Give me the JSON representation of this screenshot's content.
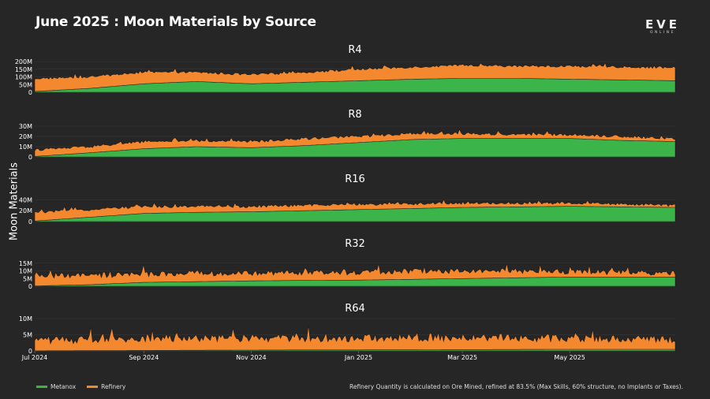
{
  "header": {
    "title": "June 2025 : Moon Materials by Source",
    "logo_main": "EVE",
    "logo_sub": "ONLINE"
  },
  "ylabel": "Moon Materials",
  "legend": [
    {
      "name": "Metanox",
      "color": "#3bb54a"
    },
    {
      "name": "Refinery",
      "color": "#f4882f"
    }
  ],
  "footnote": "Refinery Quantity is calculated on Ore Mined, refined at 83.5% (Max Skills, 60% structure, no Implants or Taxes).",
  "colors": {
    "background": "#262626",
    "metanox": "#3bb54a",
    "refinery": "#f4882f",
    "outline": "#1a1a1a",
    "grid": "#3a3a3a"
  },
  "chart_data": {
    "type": "area",
    "stacked": true,
    "x_range": [
      "2024-07-01",
      "2025-06-30"
    ],
    "x_ticks": [
      "Jul 2024",
      "Sep 2024",
      "Nov 2024",
      "Jan 2025",
      "Mar 2025",
      "May 2025"
    ],
    "x_tick_dates": [
      "2024-07-01",
      "2024-09-01",
      "2024-11-01",
      "2025-01-01",
      "2025-03-01",
      "2025-05-01"
    ],
    "series_names": [
      "Metanox",
      "Refinery"
    ],
    "panels": [
      {
        "title": "R4",
        "ylim": [
          0,
          200000000
        ],
        "y_ticks": [
          0,
          50000000,
          100000000,
          150000000,
          200000000
        ],
        "y_tick_labels": [
          "0",
          "50M",
          "100M",
          "150M",
          "200M"
        ],
        "dates": [
          "2024-07-01",
          "2024-08-01",
          "2024-09-01",
          "2024-10-01",
          "2024-11-01",
          "2024-12-01",
          "2025-01-01",
          "2025-02-01",
          "2025-03-01",
          "2025-04-01",
          "2025-05-01",
          "2025-06-01",
          "2025-06-30"
        ],
        "metanox": [
          5000000,
          25000000,
          55000000,
          70000000,
          55000000,
          65000000,
          75000000,
          85000000,
          90000000,
          90000000,
          85000000,
          80000000,
          75000000
        ],
        "total": [
          90000000,
          100000000,
          130000000,
          130000000,
          115000000,
          130000000,
          150000000,
          165000000,
          175000000,
          170000000,
          170000000,
          165000000,
          160000000
        ],
        "spike_amp": 15000000
      },
      {
        "title": "R8",
        "ylim": [
          0,
          30000000
        ],
        "y_ticks": [
          0,
          10000000,
          20000000,
          30000000
        ],
        "y_tick_labels": [
          "0",
          "10M",
          "20M",
          "30M"
        ],
        "dates": [
          "2024-07-01",
          "2024-08-01",
          "2024-09-01",
          "2024-10-01",
          "2024-11-01",
          "2024-12-01",
          "2025-01-01",
          "2025-02-01",
          "2025-03-01",
          "2025-04-01",
          "2025-05-01",
          "2025-06-01",
          "2025-06-30"
        ],
        "metanox": [
          500000,
          4000000,
          8000000,
          10000000,
          9000000,
          11000000,
          14000000,
          17000000,
          18000000,
          18000000,
          18000000,
          16000000,
          15000000
        ],
        "total": [
          7000000,
          10000000,
          15000000,
          16000000,
          15000000,
          18000000,
          20000000,
          23000000,
          23000000,
          22000000,
          22000000,
          20000000,
          18000000
        ],
        "spike_amp": 2500000
      },
      {
        "title": "R16",
        "ylim": [
          0,
          55000000
        ],
        "y_ticks": [
          0,
          20000000,
          40000000
        ],
        "y_tick_labels": [
          "0",
          "20M",
          "40M"
        ],
        "dates": [
          "2024-07-01",
          "2024-08-01",
          "2024-09-01",
          "2024-10-01",
          "2024-11-01",
          "2024-12-01",
          "2025-01-01",
          "2025-02-01",
          "2025-03-01",
          "2025-04-01",
          "2025-05-01",
          "2025-06-01",
          "2025-06-30"
        ],
        "metanox": [
          1000000,
          8000000,
          15000000,
          17000000,
          18000000,
          20000000,
          22000000,
          24000000,
          26000000,
          27000000,
          28000000,
          27000000,
          26000000
        ],
        "total": [
          17000000,
          22000000,
          28000000,
          28000000,
          28000000,
          30000000,
          32000000,
          33000000,
          34000000,
          34000000,
          34000000,
          32000000,
          30000000
        ],
        "spike_amp": 5000000
      },
      {
        "title": "R32",
        "ylim": [
          0,
          19000000
        ],
        "y_ticks": [
          0,
          5000000,
          10000000,
          15000000
        ],
        "y_tick_labels": [
          "0",
          "5M",
          "10M",
          "15M"
        ],
        "dates": [
          "2024-07-01",
          "2024-08-01",
          "2024-09-01",
          "2024-10-01",
          "2024-11-01",
          "2024-12-01",
          "2025-01-01",
          "2025-02-01",
          "2025-03-01",
          "2025-04-01",
          "2025-05-01",
          "2025-06-01",
          "2025-06-30"
        ],
        "metanox": [
          200000,
          1000000,
          2500000,
          3000000,
          3500000,
          3800000,
          4000000,
          4500000,
          5000000,
          5500000,
          6000000,
          6000000,
          6000000
        ],
        "total": [
          7000000,
          7000000,
          8000000,
          8500000,
          8500000,
          9000000,
          9000000,
          10000000,
          10000000,
          10000000,
          9500000,
          9000000,
          8500000
        ],
        "spike_amp": 3500000
      },
      {
        "title": "R64",
        "ylim": [
          0,
          11000000
        ],
        "y_ticks": [
          0,
          5000000,
          10000000
        ],
        "y_tick_labels": [
          "0",
          "5M",
          "10M"
        ],
        "dates": [
          "2024-07-01",
          "2024-08-01",
          "2024-09-01",
          "2024-10-01",
          "2024-11-01",
          "2024-12-01",
          "2025-01-01",
          "2025-02-01",
          "2025-03-01",
          "2025-04-01",
          "2025-05-01",
          "2025-06-01",
          "2025-06-30"
        ],
        "metanox": [
          50000,
          100000,
          150000,
          200000,
          250000,
          300000,
          300000,
          350000,
          400000,
          450000,
          500000,
          500000,
          500000
        ],
        "total": [
          3500000,
          3500000,
          3800000,
          4000000,
          4000000,
          4000000,
          4000000,
          4200000,
          4200000,
          4000000,
          4000000,
          3800000,
          3500000
        ],
        "spike_amp": 2500000
      }
    ]
  }
}
